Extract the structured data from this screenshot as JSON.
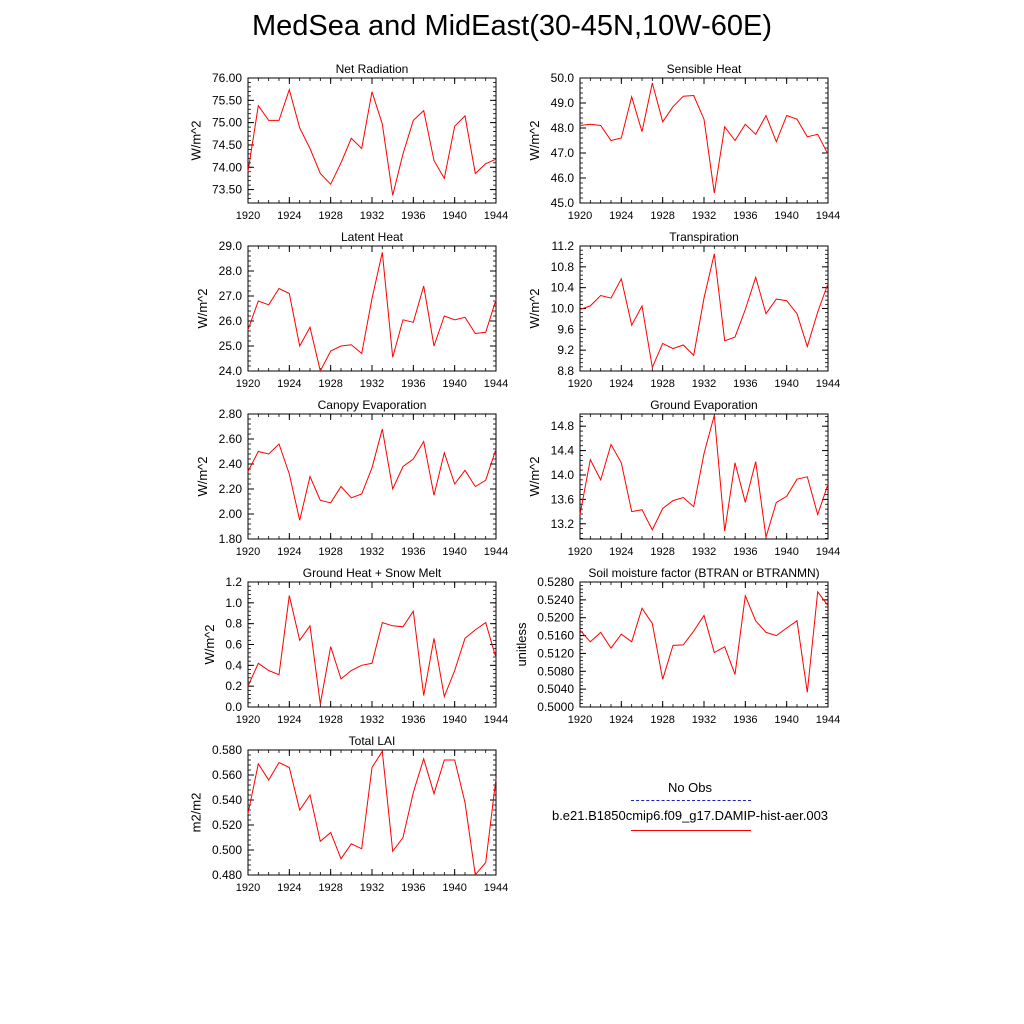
{
  "title": "MedSea and MidEast(30-45N,10W-60E)",
  "legend": [
    {
      "label": "No Obs",
      "color": "#1f1fbf",
      "dash": true
    },
    {
      "label": "b.e21.B1850cmip6.f09_g17.DAMIP-hist-aer.003",
      "color": "#ff0000",
      "dash": false
    }
  ],
  "chart_data": [
    {
      "type": "line",
      "title": "Net Radiation",
      "ylabel": "W/m^2",
      "ylim": [
        73.2,
        76.0
      ],
      "yticks": [
        "73.50",
        "74.00",
        "74.50",
        "75.00",
        "75.50",
        "76.00"
      ],
      "xlim": [
        1920,
        1944
      ],
      "xticks": [
        "1920",
        "1924",
        "1928",
        "1932",
        "1936",
        "1940",
        "1944"
      ],
      "x": [
        1920,
        1921,
        1922,
        1923,
        1924,
        1925,
        1926,
        1927,
        1928,
        1929,
        1930,
        1931,
        1932,
        1933,
        1934,
        1935,
        1936,
        1937,
        1938,
        1939,
        1940,
        1941,
        1942,
        1943,
        1944
      ],
      "series": [
        {
          "color": "#ff0000",
          "values": [
            73.9,
            75.38,
            75.05,
            75.05,
            75.74,
            74.88,
            74.42,
            73.86,
            73.62,
            74.1,
            74.65,
            74.42,
            75.69,
            74.97,
            73.37,
            74.3,
            75.05,
            75.27,
            74.15,
            73.75,
            74.92,
            75.15,
            73.86,
            74.08,
            74.18
          ]
        }
      ]
    },
    {
      "type": "line",
      "title": "Sensible Heat",
      "ylabel": "W/m^2",
      "ylim": [
        45.0,
        50.0
      ],
      "yticks": [
        "45.0",
        "46.0",
        "47.0",
        "48.0",
        "49.0",
        "50.0"
      ],
      "xlim": [
        1920,
        1944
      ],
      "xticks": [
        "1920",
        "1924",
        "1928",
        "1932",
        "1936",
        "1940",
        "1944"
      ],
      "x": [
        1920,
        1921,
        1922,
        1923,
        1924,
        1925,
        1926,
        1927,
        1928,
        1929,
        1930,
        1931,
        1932,
        1933,
        1934,
        1935,
        1936,
        1937,
        1938,
        1939,
        1940,
        1941,
        1942,
        1943,
        1944
      ],
      "series": [
        {
          "color": "#ff0000",
          "values": [
            48.1,
            48.15,
            48.1,
            47.5,
            47.6,
            49.25,
            47.85,
            49.8,
            48.25,
            48.85,
            49.27,
            49.3,
            48.35,
            45.4,
            48.05,
            47.5,
            48.15,
            47.75,
            48.5,
            47.45,
            48.5,
            48.35,
            47.65,
            47.75,
            46.95
          ]
        }
      ]
    },
    {
      "type": "line",
      "title": "Latent Heat",
      "ylabel": "W/m^2",
      "ylim": [
        24.0,
        29.0
      ],
      "yticks": [
        "24.0",
        "25.0",
        "26.0",
        "27.0",
        "28.0",
        "29.0"
      ],
      "xlim": [
        1920,
        1944
      ],
      "xticks": [
        "1920",
        "1924",
        "1928",
        "1932",
        "1936",
        "1940",
        "1944"
      ],
      "x": [
        1920,
        1921,
        1922,
        1923,
        1924,
        1925,
        1926,
        1927,
        1928,
        1929,
        1930,
        1931,
        1932,
        1933,
        1934,
        1935,
        1936,
        1937,
        1938,
        1939,
        1940,
        1941,
        1942,
        1943,
        1944
      ],
      "series": [
        {
          "color": "#ff0000",
          "values": [
            25.65,
            26.8,
            26.65,
            27.3,
            27.1,
            25.0,
            25.75,
            24.0,
            24.8,
            25.0,
            25.05,
            24.7,
            26.9,
            28.75,
            24.55,
            26.05,
            25.95,
            27.4,
            25.0,
            26.2,
            26.05,
            26.15,
            25.5,
            25.55,
            26.85
          ]
        }
      ]
    },
    {
      "type": "line",
      "title": "Transpiration",
      "ylabel": "W/m^2",
      "ylim": [
        8.8,
        11.2
      ],
      "yticks": [
        "8.8",
        "9.2",
        "9.6",
        "10.0",
        "10.4",
        "10.8",
        "11.2"
      ],
      "xlim": [
        1920,
        1944
      ],
      "xticks": [
        "1920",
        "1924",
        "1928",
        "1932",
        "1936",
        "1940",
        "1944"
      ],
      "x": [
        1920,
        1921,
        1922,
        1923,
        1924,
        1925,
        1926,
        1927,
        1928,
        1929,
        1930,
        1931,
        1932,
        1933,
        1934,
        1935,
        1936,
        1937,
        1938,
        1939,
        1940,
        1941,
        1942,
        1943,
        1944
      ],
      "series": [
        {
          "color": "#ff0000",
          "values": [
            9.98,
            10.05,
            10.25,
            10.2,
            10.57,
            9.68,
            10.05,
            8.87,
            9.33,
            9.23,
            9.3,
            9.1,
            10.2,
            11.05,
            9.38,
            9.45,
            9.98,
            10.6,
            9.9,
            10.18,
            10.15,
            9.9,
            9.27,
            9.93,
            10.48
          ]
        }
      ]
    },
    {
      "type": "line",
      "title": "Canopy Evaporation",
      "ylabel": "W/m^2",
      "ylim": [
        1.8,
        2.8
      ],
      "yticks": [
        "1.80",
        "2.00",
        "2.20",
        "2.40",
        "2.60",
        "2.80"
      ],
      "xlim": [
        1920,
        1944
      ],
      "xticks": [
        "1920",
        "1924",
        "1928",
        "1932",
        "1936",
        "1940",
        "1944"
      ],
      "x": [
        1920,
        1921,
        1922,
        1923,
        1924,
        1925,
        1926,
        1927,
        1928,
        1929,
        1930,
        1931,
        1932,
        1933,
        1934,
        1935,
        1936,
        1937,
        1938,
        1939,
        1940,
        1941,
        1942,
        1943,
        1944
      ],
      "series": [
        {
          "color": "#ff0000",
          "values": [
            2.34,
            2.5,
            2.48,
            2.56,
            2.32,
            1.95,
            2.3,
            2.11,
            2.09,
            2.22,
            2.13,
            2.16,
            2.37,
            2.68,
            2.2,
            2.38,
            2.44,
            2.58,
            2.15,
            2.49,
            2.24,
            2.35,
            2.22,
            2.27,
            2.52
          ]
        }
      ]
    },
    {
      "type": "line",
      "title": "Ground Evaporation",
      "ylabel": "W/m^2",
      "ylim": [
        12.95,
        15.0
      ],
      "yticks": [
        "13.2",
        "13.6",
        "14.0",
        "14.4",
        "14.8"
      ],
      "xlim": [
        1920,
        1944
      ],
      "xticks": [
        "1920",
        "1924",
        "1928",
        "1932",
        "1936",
        "1940",
        "1944"
      ],
      "x": [
        1920,
        1921,
        1922,
        1923,
        1924,
        1925,
        1926,
        1927,
        1928,
        1929,
        1930,
        1931,
        1932,
        1933,
        1934,
        1935,
        1936,
        1937,
        1938,
        1939,
        1940,
        1941,
        1942,
        1943,
        1944
      ],
      "series": [
        {
          "color": "#ff0000",
          "values": [
            13.35,
            14.25,
            13.92,
            14.5,
            14.2,
            13.4,
            13.43,
            13.1,
            13.45,
            13.58,
            13.63,
            13.48,
            14.35,
            14.98,
            13.08,
            14.2,
            13.55,
            14.22,
            12.98,
            13.55,
            13.65,
            13.93,
            13.97,
            13.35,
            13.85
          ]
        }
      ]
    },
    {
      "type": "line",
      "title": "Ground Heat + Snow Melt",
      "ylabel": "W/m^2",
      "ylim": [
        0.0,
        1.2
      ],
      "yticks": [
        "0.0",
        "0.2",
        "0.4",
        "0.6",
        "0.8",
        "1.0",
        "1.2"
      ],
      "xlim": [
        1920,
        1944
      ],
      "xticks": [
        "1920",
        "1924",
        "1928",
        "1932",
        "1936",
        "1940",
        "1944"
      ],
      "x": [
        1920,
        1921,
        1922,
        1923,
        1924,
        1925,
        1926,
        1927,
        1928,
        1929,
        1930,
        1931,
        1932,
        1933,
        1934,
        1935,
        1936,
        1937,
        1938,
        1939,
        1940,
        1941,
        1942,
        1943,
        1944
      ],
      "series": [
        {
          "color": "#ff0000",
          "values": [
            0.2,
            0.42,
            0.35,
            0.31,
            1.07,
            0.64,
            0.78,
            0.03,
            0.58,
            0.27,
            0.35,
            0.4,
            0.42,
            0.81,
            0.78,
            0.77,
            0.92,
            0.11,
            0.66,
            0.1,
            0.35,
            0.66,
            0.74,
            0.81,
            0.47
          ]
        }
      ]
    },
    {
      "type": "line",
      "title": "Soil moisture factor (BTRAN or BTRANMN)",
      "ylabel": "unitless",
      "ylim": [
        0.5,
        0.528
      ],
      "yticks": [
        "0.5000",
        "0.5040",
        "0.5080",
        "0.5120",
        "0.5160",
        "0.5200",
        "0.5240",
        "0.5280"
      ],
      "xlim": [
        1920,
        1944
      ],
      "xticks": [
        "1920",
        "1924",
        "1928",
        "1932",
        "1936",
        "1940",
        "1944"
      ],
      "x": [
        1920,
        1921,
        1922,
        1923,
        1924,
        1925,
        1926,
        1927,
        1928,
        1929,
        1930,
        1931,
        1932,
        1933,
        1934,
        1935,
        1936,
        1937,
        1938,
        1939,
        1940,
        1941,
        1942,
        1943,
        1944
      ],
      "series": [
        {
          "color": "#ff0000",
          "values": [
            0.5172,
            0.5146,
            0.5167,
            0.5132,
            0.5163,
            0.5146,
            0.5221,
            0.5187,
            0.5062,
            0.5138,
            0.5139,
            0.517,
            0.5205,
            0.5122,
            0.5135,
            0.5073,
            0.5249,
            0.5193,
            0.5167,
            0.516,
            0.5177,
            0.5193,
            0.5033,
            0.5258,
            0.5227
          ]
        }
      ]
    },
    {
      "type": "line",
      "title": "Total LAI",
      "ylabel": "m2/m2",
      "ylim": [
        0.48,
        0.58
      ],
      "yticks": [
        "0.480",
        "0.500",
        "0.520",
        "0.540",
        "0.560",
        "0.580"
      ],
      "xlim": [
        1920,
        1944
      ],
      "xticks": [
        "1920",
        "1924",
        "1928",
        "1932",
        "1936",
        "1940",
        "1944"
      ],
      "x": [
        1920,
        1921,
        1922,
        1923,
        1924,
        1925,
        1926,
        1927,
        1928,
        1929,
        1930,
        1931,
        1932,
        1933,
        1934,
        1935,
        1936,
        1937,
        1938,
        1939,
        1940,
        1941,
        1942,
        1943,
        1944
      ],
      "series": [
        {
          "color": "#ff0000",
          "values": [
            0.529,
            0.569,
            0.556,
            0.57,
            0.566,
            0.532,
            0.544,
            0.507,
            0.514,
            0.493,
            0.505,
            0.501,
            0.566,
            0.579,
            0.499,
            0.51,
            0.546,
            0.573,
            0.545,
            0.572,
            0.572,
            0.538,
            0.48,
            0.49,
            0.557
          ]
        }
      ]
    }
  ]
}
